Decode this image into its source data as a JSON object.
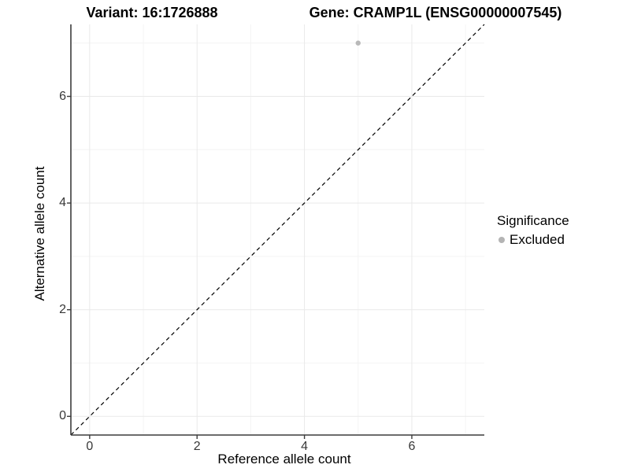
{
  "header": {
    "variant_title": "Variant: 16:1726888",
    "gene_title": "Gene: CRAMP1L (ENSG00000007545)"
  },
  "chart_data": {
    "type": "scatter",
    "xlabel": "Reference allele count",
    "ylabel": "Alternative allele count",
    "xlim": [
      -0.35,
      7.35
    ],
    "ylim": [
      -0.35,
      7.35
    ],
    "xticks": [
      0,
      2,
      4,
      6
    ],
    "yticks": [
      0,
      2,
      4,
      6
    ],
    "minor_gridlines_x": [
      1,
      3,
      5,
      7
    ],
    "minor_gridlines_y": [
      1,
      3,
      5,
      7
    ],
    "grid": "on",
    "points": [
      {
        "x": 5,
        "y": 7,
        "significance": "Excluded"
      }
    ],
    "identity_line": {
      "equation": "y = x",
      "style": "dashed",
      "color": "#000000"
    },
    "legend": {
      "position": "right",
      "title": "Significance",
      "items": [
        {
          "label": "Excluded",
          "color": "#b4b4b4"
        }
      ]
    },
    "colors": {
      "point": "#b9b9b9",
      "grid_major": "#e9e9e9",
      "grid_minor": "#f4f4f4",
      "axis_line": "#3c3c3c",
      "tick_mark": "#3c3c3c"
    }
  }
}
